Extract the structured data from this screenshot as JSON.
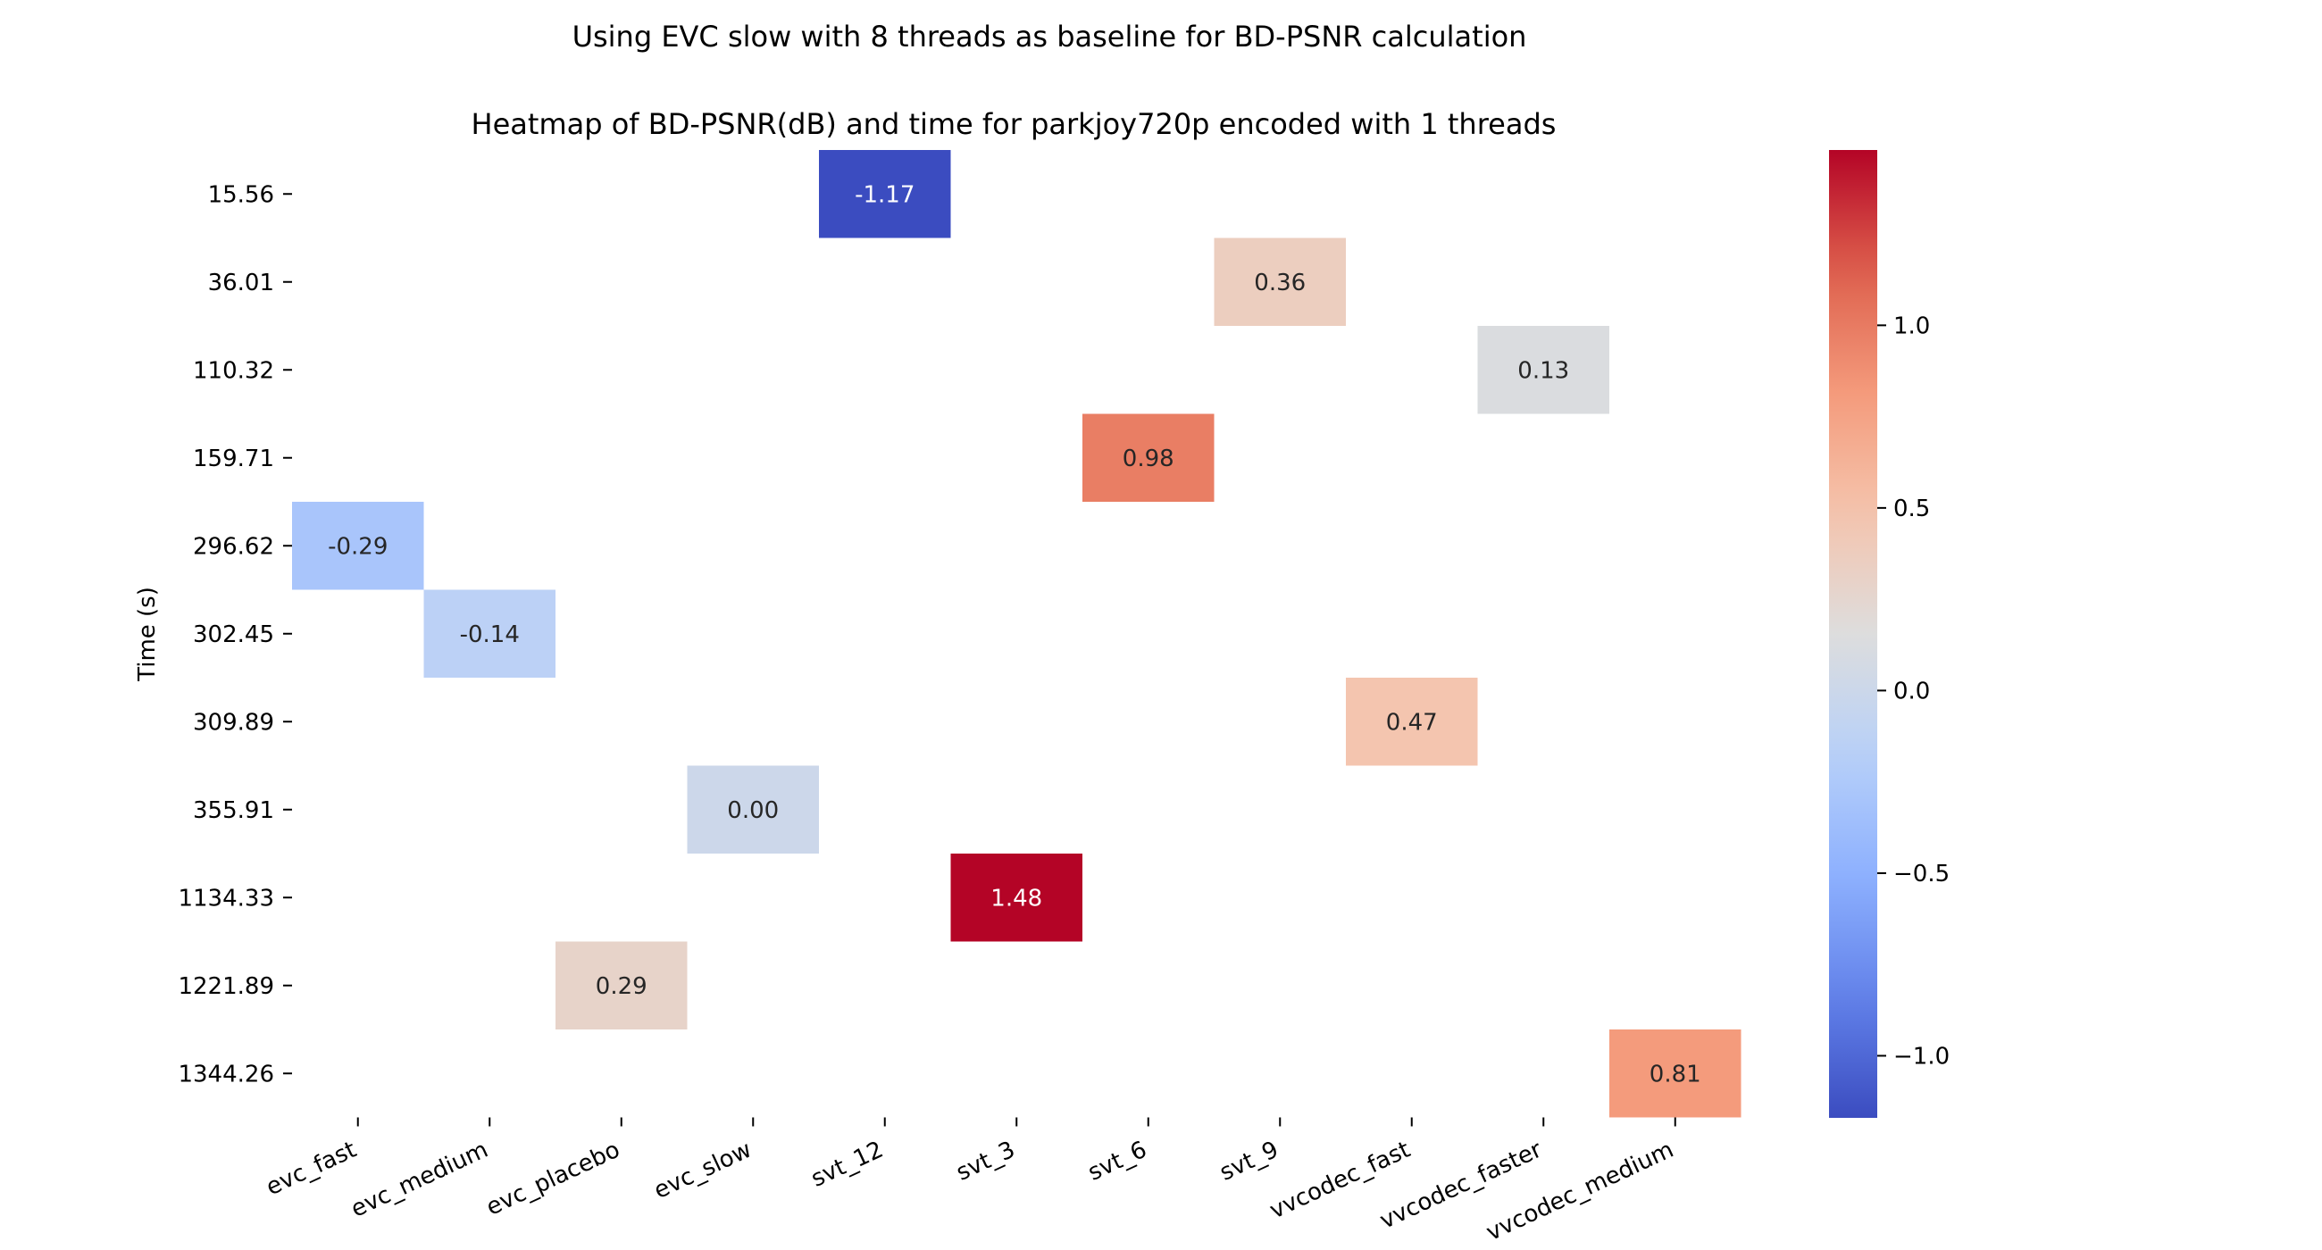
{
  "chart_data": {
    "type": "heatmap",
    "suptitle": "Using EVC slow with 8 threads as baseline for BD-PSNR calculation",
    "title": "Heatmap of BD-PSNR(dB) and time for parkjoy720p encoded with 1 threads",
    "xlabel": "",
    "ylabel": "Time (s)",
    "x_categories": [
      "evc_fast",
      "evc_medium",
      "evc_placebo",
      "evc_slow",
      "svt_12",
      "svt_3",
      "svt_6",
      "svt_9",
      "vvcodec_fast",
      "vvcodec_faster",
      "vvcodec_medium"
    ],
    "y_categories": [
      "15.56",
      "36.01",
      "110.32",
      "159.71",
      "296.62",
      "302.45",
      "309.89",
      "355.91",
      "1134.33",
      "1221.89",
      "1344.26"
    ],
    "cells": [
      {
        "x": "svt_12",
        "y": "15.56",
        "value": -1.17,
        "label": "-1.17"
      },
      {
        "x": "svt_9",
        "y": "36.01",
        "value": 0.36,
        "label": "0.36"
      },
      {
        "x": "vvcodec_faster",
        "y": "110.32",
        "value": 0.13,
        "label": "0.13"
      },
      {
        "x": "svt_6",
        "y": "159.71",
        "value": 0.98,
        "label": "0.98"
      },
      {
        "x": "evc_fast",
        "y": "296.62",
        "value": -0.29,
        "label": "-0.29"
      },
      {
        "x": "evc_medium",
        "y": "302.45",
        "value": -0.14,
        "label": "-0.14"
      },
      {
        "x": "vvcodec_fast",
        "y": "309.89",
        "value": 0.47,
        "label": "0.47"
      },
      {
        "x": "evc_slow",
        "y": "355.91",
        "value": 0.0,
        "label": "0.00"
      },
      {
        "x": "svt_3",
        "y": "1134.33",
        "value": 1.48,
        "label": "1.48"
      },
      {
        "x": "evc_placebo",
        "y": "1221.89",
        "value": 0.29,
        "label": "0.29"
      },
      {
        "x": "vvcodec_medium",
        "y": "1344.26",
        "value": 0.81,
        "label": "0.81"
      }
    ],
    "colormap": "coolwarm",
    "colorbar": {
      "vmin": -1.17,
      "vmax": 1.48,
      "ticks": [
        -1.0,
        -0.5,
        0.0,
        0.5,
        1.0
      ],
      "tick_labels": [
        "−1.0",
        "−0.5",
        "0.0",
        "0.5",
        "1.0"
      ],
      "placement": "right"
    },
    "grid": false
  }
}
